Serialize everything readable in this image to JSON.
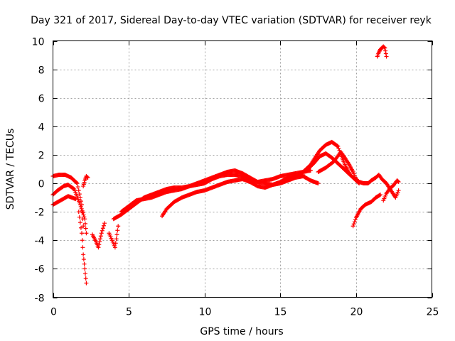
{
  "chart_data": {
    "type": "scatter",
    "title": "Day 321 of 2017, Sidereal Day-to-day VTEC variation (SDTVAR) for receiver reyk",
    "xlabel": "GPS time / hours",
    "ylabel": "SDTVAR / TECUs",
    "xlim": [
      0,
      25
    ],
    "ylim": [
      -8,
      10
    ],
    "xticks": [
      0,
      5,
      10,
      15,
      20,
      25
    ],
    "yticks": [
      -8,
      -6,
      -4,
      -2,
      0,
      2,
      4,
      6,
      8,
      10
    ],
    "grid": true,
    "marker": "plus",
    "series": [
      {
        "name": "SDTVAR",
        "color": "#ff0000",
        "segments": [
          {
            "x": [
              0.0,
              0.4,
              0.8,
              1.2,
              1.6,
              1.9,
              2.0
            ],
            "y": [
              0.5,
              0.6,
              0.6,
              0.4,
              0.0,
              -1.5,
              -3.0
            ]
          },
          {
            "x": [
              0.0,
              0.3,
              0.7,
              1.0,
              1.4,
              1.8,
              2.1,
              2.2
            ],
            "y": [
              -0.8,
              -0.5,
              -0.2,
              -0.1,
              -0.4,
              -1.5,
              -2.5,
              -3.5
            ]
          },
          {
            "x": [
              0.0,
              0.5,
              1.0,
              1.5
            ],
            "y": [
              -1.5,
              -1.2,
              -0.9,
              -1.1
            ]
          },
          {
            "x": [
              1.7,
              1.9,
              2.0,
              2.1,
              2.2
            ],
            "y": [
              -2.0,
              -3.5,
              -5.0,
              -6.0,
              -7.0
            ]
          },
          {
            "x": [
              2.0,
              2.1,
              2.2,
              2.3
            ],
            "y": [
              -0.2,
              0.2,
              0.5,
              0.4
            ]
          },
          {
            "x": [
              2.6,
              2.8,
              3.0,
              3.2,
              3.4
            ],
            "y": [
              -3.6,
              -4.0,
              -4.5,
              -3.5,
              -2.8
            ]
          },
          {
            "x": [
              3.7,
              3.9,
              4.1,
              4.3
            ],
            "y": [
              -3.5,
              -4.0,
              -4.5,
              -3.0
            ]
          },
          {
            "x": [
              4.0,
              4.5,
              5.0,
              5.5,
              6.0,
              6.5,
              7.0,
              7.5,
              8.0,
              8.5,
              9.0,
              9.5,
              10.0,
              10.5,
              11.0,
              11.5,
              12.0,
              12.5,
              13.0,
              13.5,
              14.0,
              14.5,
              15.0,
              15.5,
              16.0,
              16.5,
              17.0
            ],
            "y": [
              -2.5,
              -2.2,
              -1.8,
              -1.4,
              -1.0,
              -0.8,
              -0.6,
              -0.4,
              -0.3,
              -0.3,
              -0.2,
              -0.1,
              0.0,
              0.3,
              0.5,
              0.6,
              0.6,
              0.5,
              0.3,
              0.1,
              0.2,
              0.3,
              0.5,
              0.6,
              0.7,
              0.8,
              0.9
            ]
          },
          {
            "x": [
              4.5,
              5.0,
              5.5,
              6.0,
              6.5,
              7.0,
              7.5,
              8.0,
              8.5,
              9.0,
              9.5,
              10.0,
              10.5,
              11.0,
              11.5,
              12.0,
              12.5,
              13.0,
              13.5,
              14.0,
              14.5,
              15.0,
              15.5,
              16.0,
              16.5
            ],
            "y": [
              -2.0,
              -1.6,
              -1.2,
              -1.1,
              -1.0,
              -0.8,
              -0.6,
              -0.5,
              -0.4,
              -0.2,
              0.0,
              0.2,
              0.4,
              0.6,
              0.8,
              0.9,
              0.7,
              0.4,
              0.1,
              0.0,
              -0.1,
              0.1,
              0.4,
              0.5,
              0.6
            ]
          },
          {
            "x": [
              7.2,
              7.5,
              8.0,
              8.5,
              9.0,
              9.5,
              10.0,
              10.5,
              11.0,
              11.5,
              12.0,
              12.5,
              13.0,
              13.5,
              14.0,
              14.5,
              15.0,
              15.5,
              16.0,
              16.5,
              17.0,
              17.5
            ],
            "y": [
              -2.3,
              -1.8,
              -1.3,
              -1.0,
              -0.8,
              -0.6,
              -0.5,
              -0.3,
              -0.1,
              0.1,
              0.2,
              0.3,
              0.1,
              -0.2,
              -0.3,
              -0.1,
              0.0,
              0.2,
              0.4,
              0.5,
              0.2,
              0.0
            ]
          },
          {
            "x": [
              16.5,
              17.0,
              17.3,
              17.6,
              18.0,
              18.4,
              18.8,
              19.0,
              19.3,
              19.6,
              19.9,
              20.2
            ],
            "y": [
              0.8,
              1.3,
              1.8,
              2.3,
              2.7,
              2.9,
              2.6,
              2.0,
              1.2,
              0.6,
              0.3,
              0.0
            ]
          },
          {
            "x": [
              16.8,
              17.2,
              17.6,
              18.0,
              18.4,
              18.8,
              19.2,
              19.6,
              20.0
            ],
            "y": [
              1.0,
              1.4,
              1.9,
              2.1,
              1.8,
              1.4,
              1.0,
              0.6,
              0.2
            ]
          },
          {
            "x": [
              17.5,
              18.0,
              18.5,
              19.0,
              19.5,
              19.8
            ],
            "y": [
              0.8,
              1.1,
              1.5,
              2.2,
              1.4,
              0.8
            ]
          },
          {
            "x": [
              19.8,
              20.0,
              20.2,
              20.5,
              20.8,
              21.0,
              21.3,
              21.5,
              21.7,
              22.0,
              22.3,
              22.6,
              22.8
            ],
            "y": [
              0.8,
              0.3,
              0.1,
              0.0,
              0.0,
              0.2,
              0.4,
              0.6,
              0.3,
              0.0,
              -0.5,
              -1.0,
              -0.5
            ]
          },
          {
            "x": [
              19.8,
              20.0,
              20.3,
              20.6,
              21.0,
              21.3,
              21.6
            ],
            "y": [
              -3.0,
              -2.4,
              -1.8,
              -1.5,
              -1.3,
              -1.0,
              -0.8
            ]
          },
          {
            "x": [
              21.8,
              22.0,
              22.2,
              22.5,
              22.7,
              22.8
            ],
            "y": [
              -1.2,
              -0.7,
              -0.4,
              -0.1,
              0.2,
              0.1
            ]
          },
          {
            "x": [
              21.4,
              21.5,
              21.6,
              21.7,
              21.8,
              21.9,
              22.0
            ],
            "y": [
              8.9,
              9.2,
              9.4,
              9.5,
              9.6,
              9.5,
              8.9
            ]
          }
        ]
      }
    ]
  }
}
